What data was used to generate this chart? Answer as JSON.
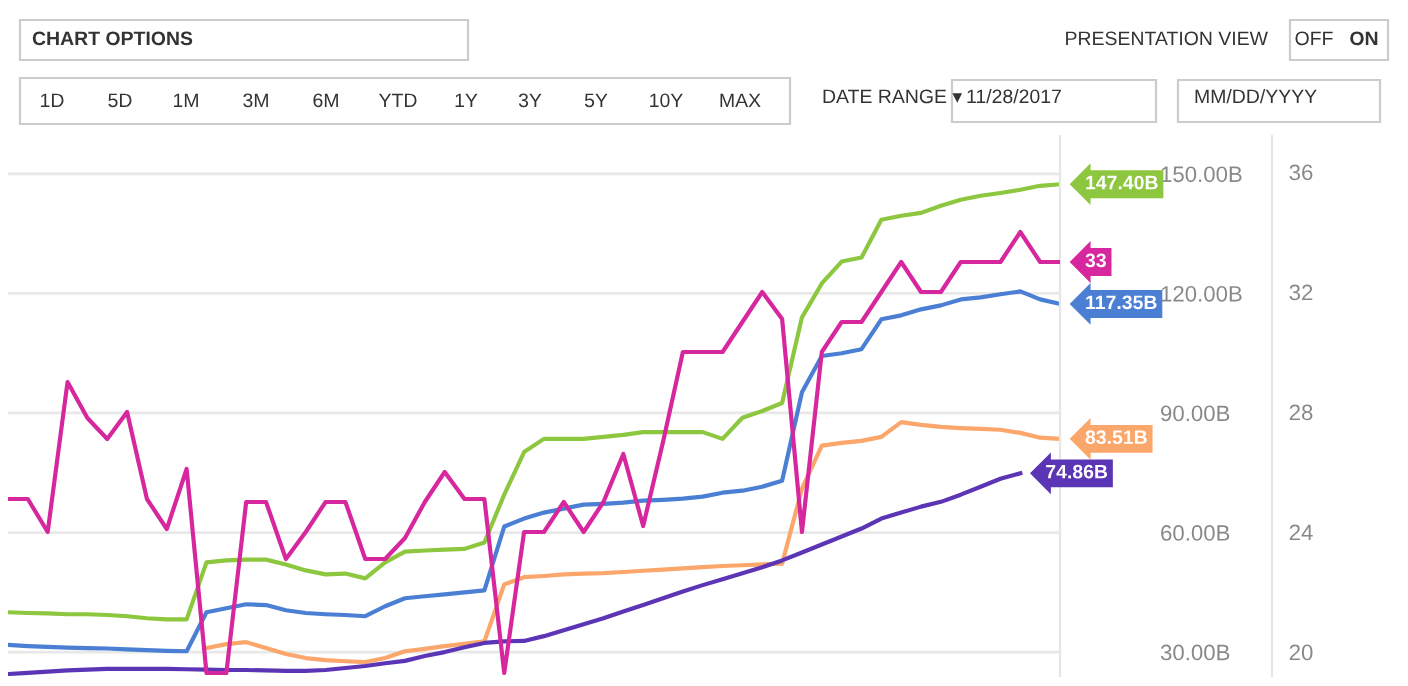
{
  "chart_data": {
    "type": "line",
    "annotations": [
      "CHART OPTIONS",
      "1D",
      "5D",
      "1M",
      "3M",
      "6M",
      "YTD",
      "1Y",
      "3Y",
      "5Y",
      "10Y",
      "MAX",
      "DATE RANGE ▾",
      "11/28/2017",
      "MM/DD/YYYY",
      "PRESENTATION VIEW",
      "OFF",
      "ON"
    ],
    "categories": [
      null,
      null,
      null,
      null,
      null,
      null,
      null,
      null,
      null,
      null,
      null,
      null,
      null,
      null,
      null,
      null,
      null,
      null,
      null,
      null,
      null,
      null,
      null,
      null,
      null,
      null,
      null,
      null,
      null,
      null,
      null,
      null,
      null,
      null,
      null,
      null,
      null,
      null,
      null,
      null,
      null,
      null,
      null,
      null,
      null,
      null,
      null,
      null,
      null,
      null,
      null,
      null,
      null,
      null
    ],
    "ylim": [
      24,
      159.5
    ],
    "yticks": [
      {
        "value": 30,
        "label": "30.00B"
      },
      {
        "value": 60,
        "label": "60.00B"
      },
      {
        "value": 90,
        "label": "90.00B"
      },
      {
        "value": 120,
        "label": "120.00B"
      },
      {
        "value": 150,
        "label": "150.00B"
      }
    ],
    "y2lim": [
      19.2,
      37.2
    ],
    "y2ticks": [
      20,
      24,
      28,
      32,
      36
    ],
    "grid": "y",
    "series": [
      {
        "color": "#8dc63f",
        "values": [
          40,
          39.8,
          39.7,
          39.5,
          39.5,
          39.3,
          39,
          38.5,
          38.2,
          38.2,
          52.5,
          53,
          53.2,
          53.2,
          52,
          50.5,
          49.5,
          49.7,
          48.5,
          52.5,
          55.2,
          55.5,
          55.7,
          55.9,
          57.5,
          69.5,
          80.2,
          83.5,
          83.5,
          83.5,
          84,
          84.5,
          85.2,
          85.2,
          85.2,
          85.2,
          83.5,
          88.8,
          90.5,
          92.5,
          114,
          122.5,
          128,
          129,
          138.5,
          139.5,
          140.2,
          142,
          143.5,
          144.5,
          145.2,
          146,
          147,
          147.4
        ],
        "value_labels": [
          null,
          null,
          null,
          null,
          null,
          null,
          null,
          null,
          null,
          null,
          null,
          null,
          null,
          null,
          null,
          null,
          null,
          null,
          null,
          null,
          null,
          null,
          null,
          null,
          null,
          null,
          null,
          null,
          null,
          null,
          null,
          null,
          null,
          null,
          null,
          null,
          null,
          null,
          null,
          null,
          null,
          null,
          null,
          null,
          null,
          null,
          null,
          null,
          null,
          null,
          null,
          null,
          null,
          "147.40B"
        ]
      },
      {
        "color": "#4a7fd4",
        "values": [
          31.8,
          31.5,
          31.3,
          31.1,
          31,
          30.9,
          30.7,
          30.5,
          30.3,
          30.2,
          40,
          41,
          42,
          41.8,
          40.5,
          39.8,
          39.5,
          39.3,
          39,
          41.5,
          43.5,
          44,
          44.5,
          45,
          45.5,
          61.5,
          63.5,
          65,
          66,
          67,
          67.2,
          67.5,
          68,
          68.2,
          68.5,
          69,
          70,
          70.5,
          71.5,
          73,
          95.2,
          104.3,
          105,
          106,
          113.5,
          114.5,
          116,
          117,
          118.5,
          119,
          119.8,
          120.5,
          118.5,
          117.35
        ],
        "value_labels": [
          null,
          null,
          null,
          null,
          null,
          null,
          null,
          null,
          null,
          null,
          null,
          null,
          null,
          null,
          null,
          null,
          null,
          null,
          null,
          null,
          null,
          null,
          null,
          null,
          null,
          null,
          null,
          null,
          null,
          null,
          null,
          null,
          null,
          null,
          null,
          null,
          null,
          null,
          null,
          null,
          null,
          null,
          null,
          null,
          null,
          null,
          null,
          null,
          null,
          null,
          null,
          null,
          null,
          "117.35B"
        ]
      },
      {
        "color": "#fba66a",
        "values": [
          null,
          null,
          null,
          null,
          null,
          null,
          null,
          null,
          null,
          null,
          31,
          32,
          32.5,
          31,
          29.5,
          28.5,
          28,
          27.7,
          27.5,
          28.5,
          30.2,
          30.8,
          31.5,
          32.1,
          32.7,
          47,
          48.8,
          49.1,
          49.5,
          49.7,
          49.8,
          50.1,
          50.4,
          50.7,
          51,
          51.3,
          51.6,
          51.8,
          52,
          52.2,
          71,
          81.8,
          82.5,
          83,
          84,
          87.7,
          87,
          86.5,
          86.2,
          86,
          85.8,
          85,
          83.8,
          83.51
        ],
        "value_labels": [
          null,
          null,
          null,
          null,
          null,
          null,
          null,
          null,
          null,
          null,
          null,
          null,
          null,
          null,
          null,
          null,
          null,
          null,
          null,
          null,
          null,
          null,
          null,
          null,
          null,
          null,
          null,
          null,
          null,
          null,
          null,
          null,
          null,
          null,
          null,
          null,
          null,
          null,
          null,
          null,
          null,
          null,
          null,
          null,
          null,
          null,
          null,
          null,
          null,
          null,
          null,
          null,
          null,
          "83.51B"
        ]
      },
      {
        "color": "#5b35b5",
        "values": [
          24.5,
          24.8,
          25.1,
          25.4,
          25.6,
          25.8,
          25.8,
          25.8,
          25.8,
          25.7,
          25.6,
          25.5,
          25.5,
          25.4,
          25.3,
          25.3,
          25.5,
          26,
          26.5,
          27.2,
          27.8,
          29,
          30,
          31.2,
          32.3,
          32.7,
          32.8,
          34,
          35.5,
          37,
          38.5,
          40.2,
          41.8,
          43.5,
          45.2,
          46.8,
          48.3,
          49.8,
          51.3,
          53,
          55,
          57,
          59,
          61,
          63.5,
          65,
          66.5,
          67.7,
          69.5,
          71.5,
          73.5,
          74.86,
          null,
          null
        ],
        "value_labels": [
          null,
          null,
          null,
          null,
          null,
          null,
          null,
          null,
          null,
          null,
          null,
          null,
          null,
          null,
          null,
          null,
          null,
          null,
          null,
          null,
          null,
          null,
          null,
          null,
          null,
          null,
          null,
          null,
          null,
          null,
          null,
          null,
          null,
          null,
          null,
          null,
          null,
          null,
          null,
          null,
          null,
          null,
          null,
          null,
          null,
          null,
          null,
          null,
          null,
          null,
          null,
          "74.86B",
          null,
          null
        ]
      },
      {
        "color": "#d6279e",
        "axis": "y2",
        "values": [
          25.1,
          25.1,
          24,
          29,
          27.8,
          27.1,
          28,
          25.1,
          24.1,
          26.1,
          19.3,
          19.3,
          25,
          25,
          23.1,
          24,
          25,
          25,
          23.1,
          23.1,
          23.8,
          25,
          26,
          25.1,
          25.1,
          19.3,
          24,
          24,
          25,
          24,
          25,
          26.6,
          24.2,
          27,
          30,
          30,
          30,
          31,
          32,
          31.1,
          24,
          30,
          31,
          31,
          32,
          33,
          32,
          32,
          33,
          33,
          33,
          34,
          33,
          33
        ],
        "value_labels": [
          null,
          null,
          null,
          null,
          null,
          null,
          null,
          null,
          null,
          null,
          null,
          null,
          null,
          null,
          null,
          null,
          null,
          null,
          null,
          null,
          null,
          null,
          null,
          null,
          null,
          null,
          null,
          null,
          null,
          null,
          null,
          null,
          null,
          null,
          null,
          null,
          null,
          null,
          null,
          null,
          null,
          null,
          null,
          null,
          null,
          null,
          null,
          null,
          null,
          null,
          null,
          null,
          null,
          "33"
        ]
      }
    ]
  }
}
